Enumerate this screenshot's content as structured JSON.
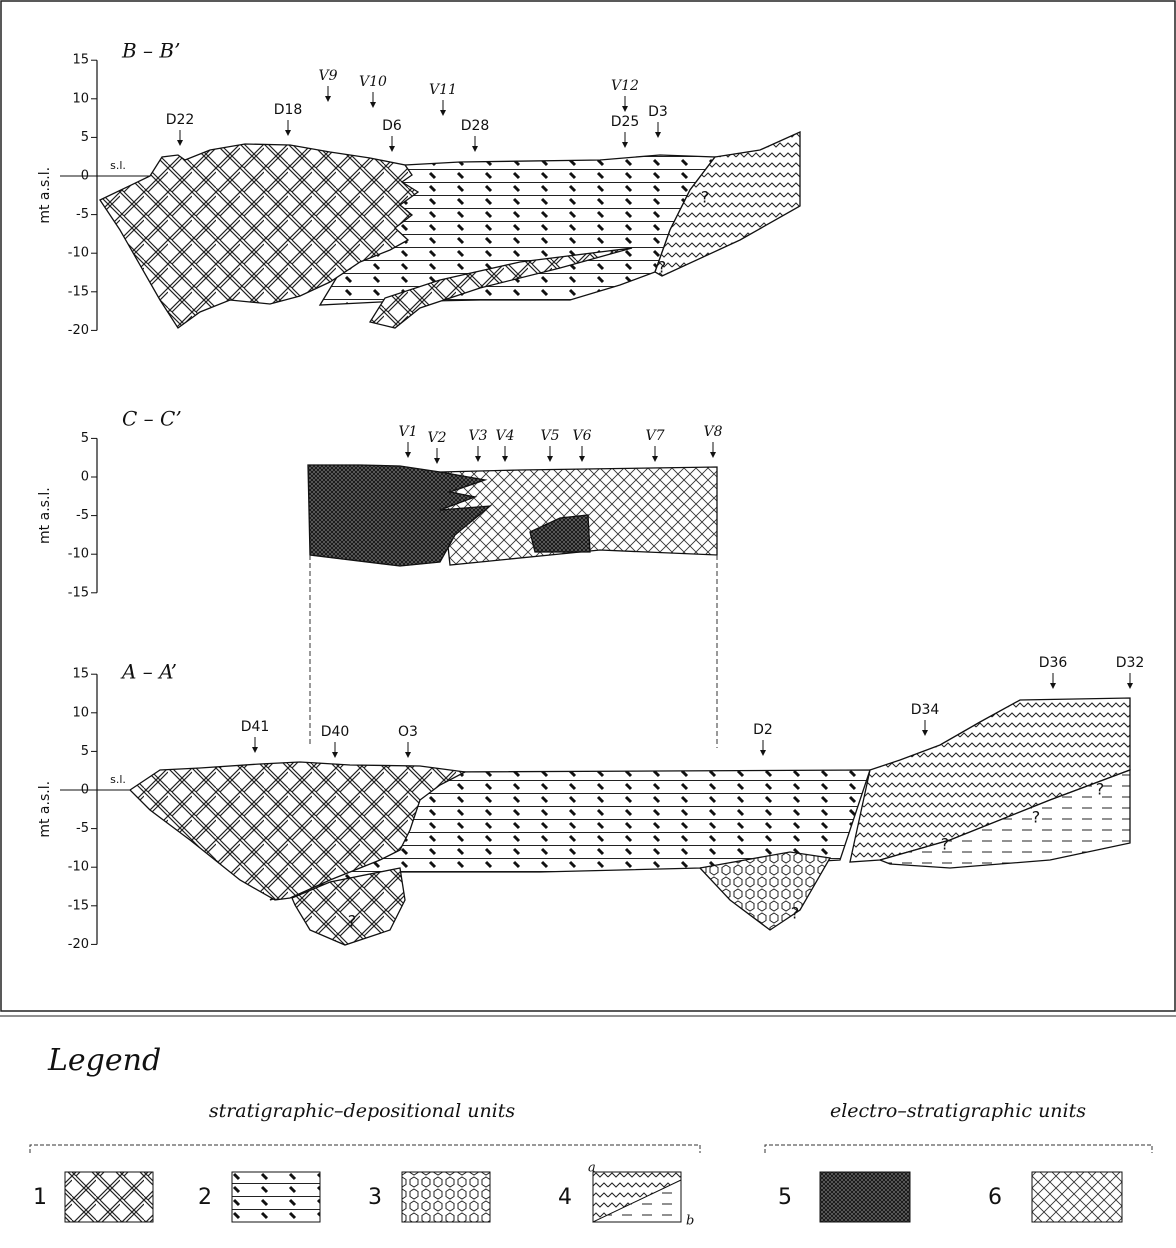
{
  "sections": [
    {
      "title": "B – B’",
      "axis_label": "mt a.s.l.",
      "yticks": [
        15,
        10,
        5,
        0,
        -5,
        -10,
        -15,
        -20
      ],
      "sea_level": "s.l.",
      "wells": [
        "D22",
        "D18",
        "V9",
        "V10",
        "D6",
        "V11",
        "D28",
        "V12",
        "D25",
        "D3"
      ]
    },
    {
      "title": "C – C’",
      "axis_label": "mt a.s.l.",
      "yticks": [
        5,
        0,
        -5,
        -10,
        -15
      ],
      "wells": [
        "V1",
        "V2",
        "V3",
        "V4",
        "V5",
        "V6",
        "V7",
        "V8"
      ]
    },
    {
      "title": "A – A’",
      "axis_label": "mt a.s.l.",
      "yticks": [
        15,
        10,
        5,
        0,
        -5,
        -10,
        -15,
        -20
      ],
      "sea_level": "s.l.",
      "wells": [
        "D41",
        "D40",
        "O3",
        "D2",
        "D34",
        "D36",
        "D32"
      ]
    }
  ],
  "uncertain": "?",
  "legend": {
    "title": "Legend",
    "groups": [
      {
        "label": "stratigraphic–depositional units",
        "items": [
          "1",
          "2",
          "3",
          "4"
        ]
      },
      {
        "label": "electro–stratigraphic units",
        "items": [
          "5",
          "6"
        ]
      }
    ],
    "sublabels": [
      "a",
      "b"
    ]
  }
}
